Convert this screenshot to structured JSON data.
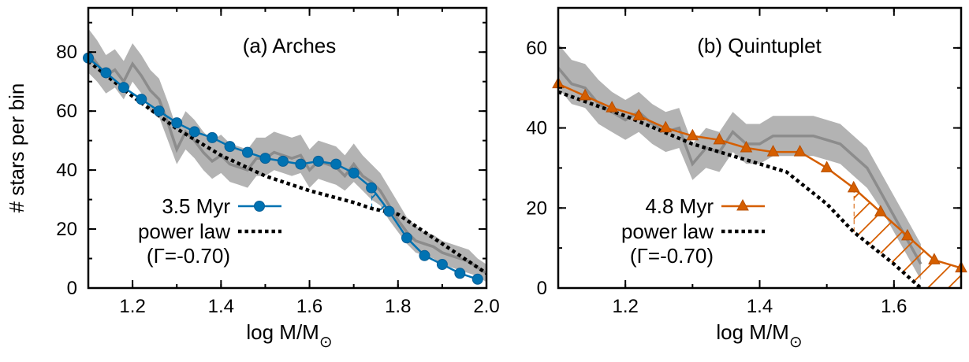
{
  "ylabel": "# stars per bin",
  "chart_data": [
    {
      "type": "line",
      "title": "(a) Arches",
      "xlabel": "log M/M⊙",
      "xlim": [
        1.1,
        2.0
      ],
      "ylim": [
        0,
        95
      ],
      "xticks": [
        "1.2",
        "1.4",
        "1.6",
        "1.8",
        "2.0"
      ],
      "xtick_values": [
        1.2,
        1.4,
        1.6,
        1.8,
        2.0
      ],
      "yticks": [
        "0",
        "20",
        "40",
        "60",
        "80"
      ],
      "ytick_values": [
        0,
        20,
        40,
        60,
        80
      ],
      "color": "#0072b2",
      "marker": "circle",
      "cutoff_x": 1.74,
      "series": [
        {
          "name": "3.5 Myr",
          "x": [
            1.1,
            1.14,
            1.18,
            1.22,
            1.26,
            1.3,
            1.34,
            1.38,
            1.42,
            1.46,
            1.5,
            1.54,
            1.58,
            1.62,
            1.66,
            1.7,
            1.74,
            1.78,
            1.82,
            1.86,
            1.9,
            1.94,
            1.98
          ],
          "y": [
            78,
            73,
            68,
            64,
            60,
            56,
            53,
            51,
            48,
            46,
            44,
            43,
            42,
            43,
            42,
            39,
            34,
            26,
            17,
            11,
            8,
            5,
            3
          ]
        },
        {
          "name": "power law",
          "label2": "(Γ=-0.70)",
          "x": [
            1.1,
            1.2,
            1.3,
            1.4,
            1.5,
            1.6,
            1.7,
            1.74,
            1.8,
            1.86,
            1.9,
            1.94,
            2.0
          ],
          "y": [
            77,
            65,
            54,
            45,
            38,
            33,
            29,
            27,
            25,
            19,
            15,
            11,
            5
          ]
        }
      ],
      "simulation_band": {
        "x": [
          1.1,
          1.12,
          1.14,
          1.16,
          1.18,
          1.2,
          1.22,
          1.24,
          1.26,
          1.28,
          1.3,
          1.32,
          1.34,
          1.36,
          1.38,
          1.4,
          1.42,
          1.44,
          1.46,
          1.48,
          1.5,
          1.52,
          1.54,
          1.56,
          1.58,
          1.6,
          1.62,
          1.64,
          1.66,
          1.68,
          1.7,
          1.72,
          1.74,
          1.76,
          1.78,
          1.8,
          1.82,
          1.84,
          1.86,
          1.88,
          1.9,
          1.92,
          1.94,
          1.96,
          1.98,
          2.0
        ],
        "mean": [
          80,
          76,
          72,
          74,
          70,
          76,
          72,
          67,
          64,
          56,
          47,
          53,
          50,
          46,
          43,
          45,
          42,
          41,
          40,
          44,
          44,
          46,
          45,
          44,
          45,
          40,
          43,
          42,
          41,
          38,
          42,
          38,
          36,
          33,
          28,
          23,
          19,
          16,
          15,
          14,
          12,
          11,
          10,
          9,
          7,
          5
        ],
        "lower": [
          73,
          70,
          66,
          68,
          64,
          70,
          66,
          60,
          58,
          50,
          42,
          47,
          44,
          40,
          37,
          39,
          36,
          35,
          34,
          38,
          38,
          40,
          39,
          38,
          39,
          34,
          37,
          36,
          35,
          33,
          36,
          33,
          30,
          28,
          23,
          19,
          15,
          12,
          11,
          10,
          8,
          7,
          6,
          5,
          4,
          2
        ],
        "upper": [
          88,
          84,
          79,
          81,
          77,
          83,
          79,
          74,
          71,
          63,
          54,
          60,
          57,
          53,
          50,
          52,
          49,
          48,
          47,
          51,
          51,
          53,
          52,
          51,
          52,
          47,
          50,
          49,
          48,
          45,
          49,
          45,
          42,
          39,
          34,
          29,
          24,
          21,
          19,
          18,
          16,
          15,
          14,
          13,
          10,
          8
        ]
      }
    },
    {
      "type": "line",
      "title": "(b) Quintuplet",
      "xlabel": "log M/M⊙",
      "xlim": [
        1.1,
        1.7
      ],
      "ylim": [
        0,
        70
      ],
      "xticks": [
        "1.2",
        "1.4",
        "1.6"
      ],
      "xtick_values": [
        1.2,
        1.4,
        1.6
      ],
      "yticks": [
        "0",
        "20",
        "40",
        "60"
      ],
      "ytick_values": [
        0,
        20,
        40,
        60
      ],
      "color": "#d55e00",
      "marker": "triangle",
      "cutoff_x": 1.54,
      "series": [
        {
          "name": "4.8 Myr",
          "x": [
            1.1,
            1.14,
            1.18,
            1.22,
            1.26,
            1.3,
            1.34,
            1.38,
            1.42,
            1.46,
            1.5,
            1.54,
            1.58,
            1.62,
            1.66,
            1.7
          ],
          "y": [
            51,
            48,
            45,
            43,
            40,
            38,
            37,
            35,
            34,
            34,
            30,
            25,
            19,
            13,
            7,
            5
          ]
        },
        {
          "name": "power law",
          "label2": "(Γ=-0.70)",
          "x": [
            1.1,
            1.2,
            1.3,
            1.4,
            1.44,
            1.5,
            1.54,
            1.6,
            1.64
          ],
          "y": [
            49,
            43,
            36,
            31,
            29,
            21,
            14,
            6,
            0
          ]
        }
      ],
      "simulation_band": {
        "x": [
          1.1,
          1.12,
          1.14,
          1.16,
          1.18,
          1.2,
          1.22,
          1.24,
          1.26,
          1.28,
          1.3,
          1.32,
          1.34,
          1.36,
          1.38,
          1.4,
          1.42,
          1.44,
          1.46,
          1.48,
          1.5,
          1.52,
          1.54,
          1.56,
          1.58,
          1.6,
          1.62,
          1.64
        ],
        "mean": [
          55,
          51,
          50,
          46,
          44,
          42,
          44,
          41,
          39,
          40,
          31,
          35,
          34,
          39,
          36,
          36,
          38,
          38,
          38,
          38,
          37,
          36,
          33,
          30,
          24,
          18,
          12,
          6
        ],
        "lower": [
          50,
          46,
          45,
          41,
          39,
          37,
          39,
          36,
          34,
          35,
          27,
          30,
          29,
          34,
          31,
          31,
          33,
          33,
          33,
          33,
          32,
          31,
          28,
          25,
          20,
          14,
          8,
          2
        ],
        "upper": [
          61,
          57,
          56,
          52,
          49,
          47,
          49,
          46,
          44,
          45,
          36,
          40,
          39,
          44,
          41,
          41,
          43,
          43,
          43,
          43,
          42,
          41,
          38,
          35,
          29,
          23,
          17,
          11
        ]
      }
    }
  ]
}
